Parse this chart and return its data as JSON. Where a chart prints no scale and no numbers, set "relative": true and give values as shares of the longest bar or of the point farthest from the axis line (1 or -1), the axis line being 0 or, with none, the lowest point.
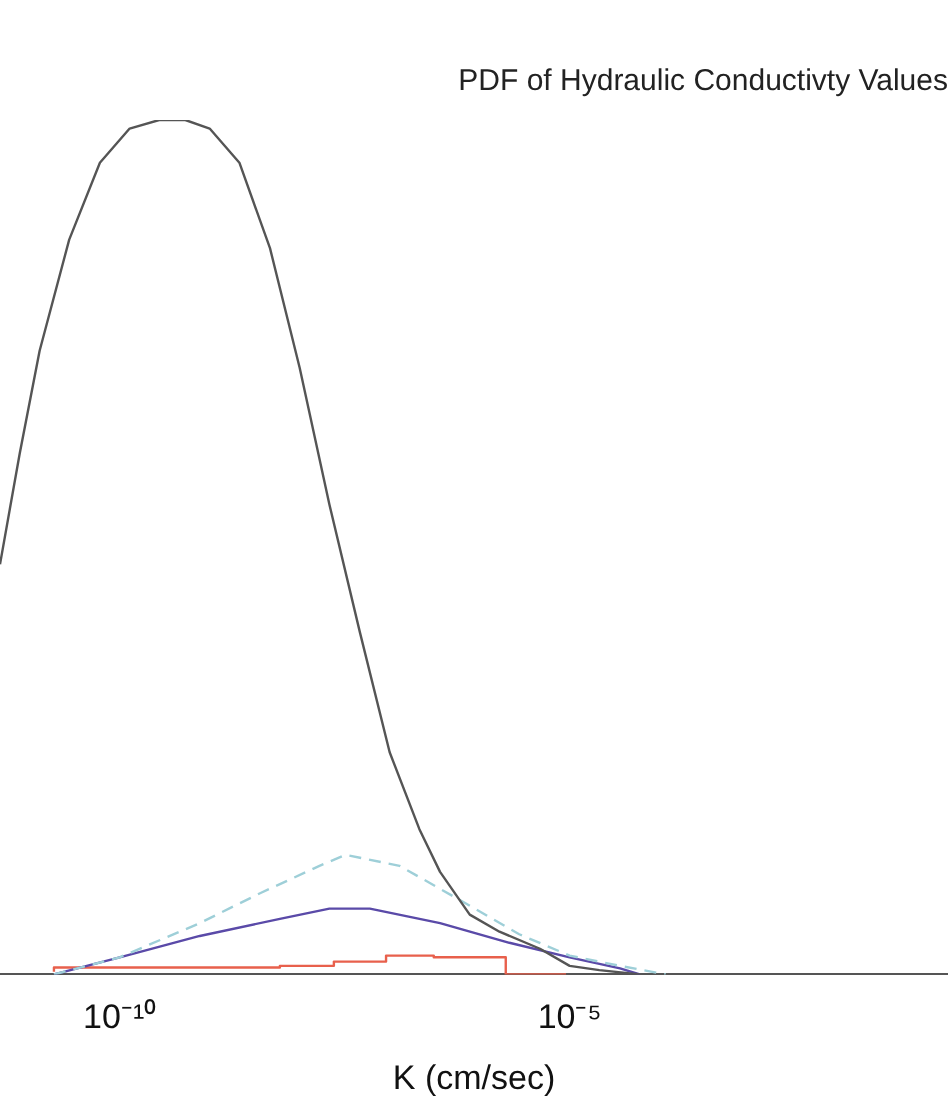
{
  "chart_data": {
    "type": "line",
    "title": "PDF of Hydraulic Conductivty Values",
    "xlabel": "K (cm/sec)",
    "log": "x",
    "relative": true,
    "grid": false,
    "legend": false,
    "marker": "none",
    "xlim": [
      4.68e-12,
      0.16
    ],
    "xticks": [
      {
        "value": 1e-10,
        "label": "10⁻¹⁰"
      },
      {
        "value": 1e-05,
        "label": "10⁻⁵"
      }
    ],
    "series": [
      {
        "color": "#555555",
        "line_style": "solid",
        "x": [
          4.68e-12,
          7.76e-12,
          1.29e-11,
          2.75e-11,
          6.03e-11,
          1.29e-10,
          2.75e-10,
          5.37e-10,
          1e-09,
          2.14e-09,
          4.68e-09,
          1e-08,
          2.14e-08,
          4.68e-08,
          1e-07,
          2.14e-07,
          3.63e-07,
          7.76e-07,
          1.66e-06,
          4.68e-06,
          1e-05,
          2.14e-05,
          6.03e-05
        ],
        "values": [
          0.48,
          0.61,
          0.73,
          0.86,
          0.95,
          0.99,
          1,
          1,
          0.99,
          0.95,
          0.85,
          0.71,
          0.55,
          0.4,
          0.26,
          0.17,
          0.12,
          0.07,
          0.05,
          0.03,
          0.01,
          0.005,
          0
        ]
      },
      {
        "color": "#9ecfd8",
        "line_style": "dashed",
        "x": [
          1.86e-11,
          1e-10,
          7.76e-10,
          3.63e-09,
          1.66e-08,
          3.24e-08,
          1.29e-07,
          6.03e-07,
          2.75e-06,
          1e-05,
          3.63e-05,
          0.000117
        ],
        "values": [
          0,
          0.02,
          0.06,
          0.095,
          0.127,
          0.14,
          0.127,
          0.087,
          0.047,
          0.022,
          0.01,
          0
        ]
      },
      {
        "color": "#5a4aa8",
        "line_style": "solid",
        "x": [
          1.86e-11,
          1e-10,
          7.76e-10,
          6.03e-09,
          2.14e-08,
          6.03e-08,
          3.63e-07,
          2.14e-06,
          1e-05,
          3.63e-05,
          6.03e-05
        ],
        "values": [
          0,
          0.02,
          0.045,
          0.065,
          0.077,
          0.077,
          0.06,
          0.037,
          0.02,
          0.007,
          0
        ]
      },
      {
        "type": "step",
        "color": "#e8604c",
        "line_style": "solid",
        "x": [
          1.86e-11,
          6.03e-09,
          2.4e-08,
          9.12e-08,
          3.09e-07,
          1.95e-06,
          9.12e-06
        ],
        "values": [
          0.003,
          0.008,
          0.01,
          0.015,
          0.022,
          0.02,
          0
        ]
      }
    ]
  }
}
